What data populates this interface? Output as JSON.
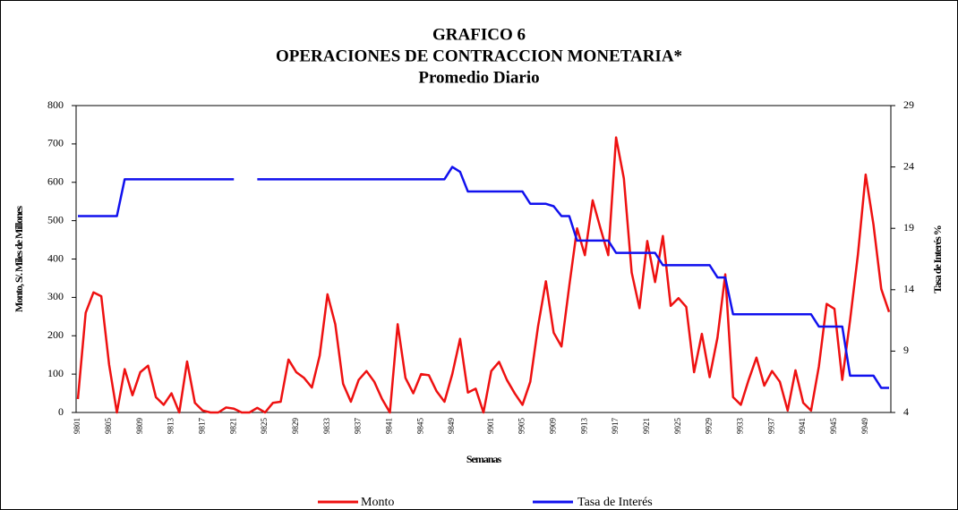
{
  "chart_data": {
    "type": "line",
    "title": "GRAFICO 6",
    "subtitle": "OPERACIONES DE CONTRACCION MONETARIA*",
    "subtitle2": "Promedio Diario",
    "xlabel": "Semanas",
    "ylabel": "Monto, S/. Miles de Millones",
    "y2label": "Tasa de Interés %",
    "categories": [
      "9801",
      null,
      null,
      null,
      "9805",
      null,
      null,
      null,
      "9809",
      null,
      null,
      null,
      "9813",
      null,
      null,
      null,
      "9817",
      null,
      null,
      null,
      "9821",
      null,
      null,
      null,
      "9825",
      null,
      null,
      null,
      "9829",
      null,
      null,
      null,
      "9833",
      null,
      null,
      null,
      "9837",
      null,
      null,
      null,
      "9841",
      null,
      null,
      null,
      "9845",
      null,
      null,
      null,
      "9849",
      null,
      null,
      null,
      null,
      "9901",
      null,
      null,
      null,
      "9905",
      null,
      null,
      null,
      "9909",
      null,
      null,
      null,
      "9913",
      null,
      null,
      null,
      "9917",
      null,
      null,
      null,
      "9921",
      null,
      null,
      null,
      "9925",
      null,
      null,
      null,
      "9929",
      null,
      null,
      null,
      "9933",
      null,
      null,
      null,
      "9937",
      null,
      null,
      null,
      "9941",
      null,
      null,
      null,
      "9945",
      null,
      null,
      null,
      "9949",
      null,
      null,
      null
    ],
    "series": [
      {
        "name": "Monto",
        "color": "#ee1111",
        "values": [
          35,
          260,
          313,
          303,
          125,
          0,
          113,
          45,
          105,
          122,
          40,
          20,
          50,
          0,
          133,
          25,
          5,
          0,
          0,
          13,
          10,
          0,
          0,
          12,
          0,
          25,
          28,
          138,
          105,
          90,
          65,
          148,
          308,
          230,
          75,
          28,
          85,
          108,
          80,
          35,
          0,
          230,
          90,
          50,
          100,
          97,
          55,
          28,
          100,
          192,
          52,
          62,
          0,
          108,
          132,
          85,
          50,
          20,
          80,
          225,
          342,
          208,
          172,
          330,
          480,
          410,
          553,
          480,
          410,
          717,
          610,
          365,
          272,
          447,
          340,
          460,
          278,
          298,
          275,
          105,
          205,
          92,
          195,
          360,
          40,
          20,
          85,
          143,
          70,
          108,
          80,
          5,
          110,
          25,
          5,
          120,
          283,
          270,
          85,
          240,
          410,
          620,
          490,
          322,
          262
        ]
      },
      {
        "name": "Tasa de Interés",
        "color": "#1111ee",
        "axis": "y2",
        "values": [
          20,
          20,
          20,
          20,
          20,
          20,
          23,
          23,
          23,
          23,
          23,
          23,
          23,
          23,
          23,
          23,
          23,
          23,
          23,
          23,
          23,
          null,
          null,
          23,
          23,
          23,
          23,
          23,
          23,
          23,
          23,
          23,
          23,
          23,
          23,
          23,
          23,
          23,
          23,
          23,
          23,
          23,
          23,
          23,
          23,
          23,
          23,
          23,
          24,
          23.6,
          22,
          22,
          22,
          22,
          22,
          22,
          22,
          22,
          21,
          21,
          21,
          20.8,
          20,
          20,
          18,
          18,
          18,
          18,
          18,
          17,
          17,
          17,
          17,
          17,
          17,
          16,
          16,
          16,
          16,
          16,
          16,
          16,
          15,
          15,
          12,
          12,
          12,
          12,
          12,
          12,
          12,
          12,
          12,
          12,
          12,
          11,
          11,
          11,
          11,
          7,
          7,
          7,
          7,
          6,
          6
        ]
      }
    ],
    "ylim": [
      0,
      800
    ],
    "yticks": [
      0,
      100,
      200,
      300,
      400,
      500,
      600,
      700,
      800
    ],
    "y2lim": [
      4,
      29
    ],
    "y2ticks": [
      4,
      9,
      14,
      19,
      24,
      29
    ],
    "grid": false,
    "legend": "bottom"
  }
}
